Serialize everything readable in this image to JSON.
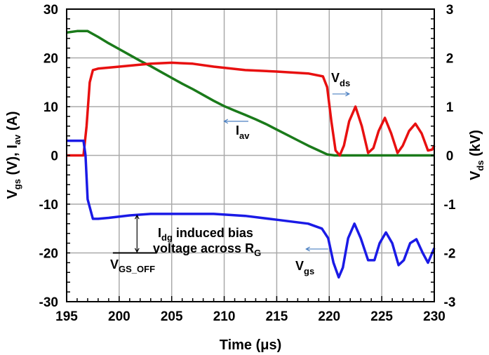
{
  "chart_data": {
    "type": "line",
    "xlabel": "Time (μs)",
    "ylabel": {
      "main": "V",
      "sub1": "gs",
      "mid": " (V), I",
      "sub2": "av",
      "end": " (A)"
    },
    "y2label": {
      "main": "V",
      "sub": "ds",
      "end": " (kV)"
    },
    "xlim": [
      195,
      230
    ],
    "ylim": [
      -30,
      30
    ],
    "y2lim": [
      -3,
      3
    ],
    "xticks": [
      195,
      200,
      205,
      210,
      215,
      220,
      225,
      230
    ],
    "yticks": [
      -30,
      -20,
      -10,
      0,
      10,
      20,
      30
    ],
    "y2ticks": [
      -3,
      -2,
      -1,
      0,
      1,
      2,
      3
    ],
    "grid": true,
    "series": [
      {
        "name": "Iav",
        "axis": "left",
        "color": "#1a7a1a",
        "x": [
          195,
          196,
          197,
          198,
          199,
          200,
          201,
          202,
          203,
          204,
          205,
          206,
          207,
          208,
          209,
          210,
          211,
          212,
          213,
          214,
          215,
          216,
          217,
          218,
          219,
          219.8,
          220.5,
          225,
          230
        ],
        "y": [
          25.2,
          25.5,
          25.5,
          24.3,
          23,
          21.8,
          20.6,
          19.4,
          18.3,
          17.1,
          15.9,
          14.7,
          13.6,
          12.4,
          11.2,
          10.1,
          9.2,
          8.3,
          7.4,
          6.4,
          5.3,
          4.2,
          3.1,
          2.0,
          1.0,
          0.2,
          0,
          0,
          0
        ]
      },
      {
        "name": "Vds",
        "axis": "right",
        "color": "#e81010",
        "x": [
          195,
          196.6,
          196.9,
          197.2,
          197.5,
          198,
          200,
          203,
          205,
          207,
          209,
          212,
          215,
          218,
          219.4,
          219.8,
          220.2,
          220.6,
          221,
          221.4,
          221.9,
          222.5,
          223.1,
          223.7,
          224.2,
          224.7,
          225.3,
          225.9,
          226.5,
          227,
          227.6,
          228.2,
          228.8,
          229.4,
          229.8,
          230
        ],
        "y": [
          0,
          0,
          0.6,
          1.5,
          1.75,
          1.78,
          1.82,
          1.88,
          1.9,
          1.88,
          1.82,
          1.75,
          1.72,
          1.68,
          1.62,
          1.4,
          0.7,
          0.1,
          0,
          0.2,
          0.7,
          1.0,
          0.6,
          0.05,
          0.15,
          0.5,
          0.77,
          0.45,
          0.05,
          0.2,
          0.5,
          0.65,
          0.45,
          0.1,
          0.12,
          0.2
        ]
      },
      {
        "name": "Vgs",
        "axis": "left",
        "color": "#1a1ae6",
        "x": [
          195,
          196.6,
          196.8,
          197,
          197.5,
          198,
          199,
          201,
          203,
          206,
          209,
          212,
          215,
          218,
          219.3,
          219.9,
          220.4,
          220.9,
          221.3,
          221.8,
          222.4,
          223,
          223.7,
          224.3,
          224.8,
          225.4,
          226,
          226.6,
          227.1,
          227.7,
          228.3,
          228.9,
          229.4,
          230
        ],
        "y": [
          3,
          3,
          0,
          -9,
          -13,
          -13,
          -12.8,
          -12.3,
          -12,
          -12,
          -12,
          -12.4,
          -13.2,
          -14,
          -15,
          -17,
          -22,
          -25,
          -23,
          -17,
          -14,
          -17,
          -21.5,
          -21.5,
          -18,
          -15.8,
          -18,
          -22.5,
          -21.5,
          -18,
          -17.2,
          -20,
          -22,
          -19
        ]
      }
    ],
    "annotations": {
      "vds": {
        "main": "V",
        "sub": "ds"
      },
      "iav": {
        "main": "I",
        "sub": "av"
      },
      "vgs": {
        "main": "V",
        "sub": "gs"
      },
      "vgsoff": {
        "main": "V",
        "sub": "GS_OFF"
      },
      "bias1": {
        "main": "I",
        "sub": "dg",
        "end": " induced  bias"
      },
      "bias2": {
        "main": "voltage across R",
        "sub": "G"
      }
    }
  }
}
